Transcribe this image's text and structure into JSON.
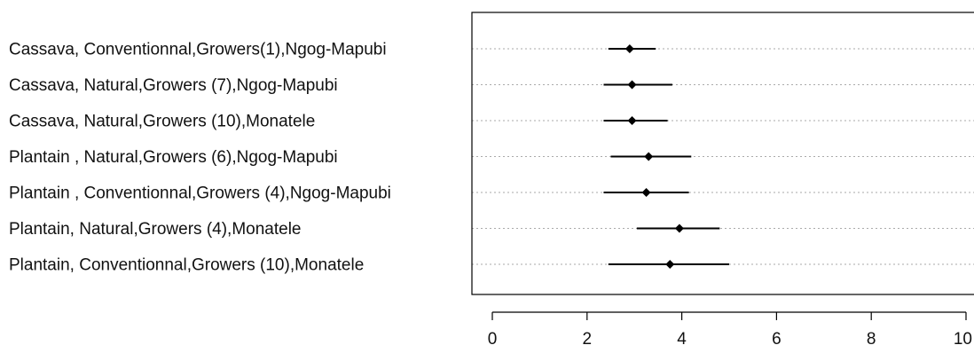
{
  "chart_data": {
    "type": "scatter",
    "title": "",
    "xlabel": "",
    "ylabel": "",
    "xlim": [
      0,
      10
    ],
    "xticks": [
      0,
      2,
      4,
      6,
      8,
      10
    ],
    "xtick_labels": [
      "0",
      "2",
      "4",
      "6",
      "8",
      "10"
    ],
    "grid": "dotted horizontal lines at each row",
    "marker": "diamond with horizontal interval whiskers",
    "categories": [
      "Cassava, Conventionnal,Growers(1),Ngog-Mapubi",
      "Cassava, Natural,Growers (7),Ngog-Mapubi",
      "Cassava, Natural,Growers (10),Monatele",
      "Plantain , Natural,Growers (6),Ngog-Mapubi",
      "Plantain , Conventionnal,Growers (4),Ngog-Mapubi",
      "Plantain, Natural,Growers (4),Monatele",
      "Plantain, Conventionnal,Growers (10),Monatele"
    ],
    "series": [
      {
        "values": [
          2.9,
          2.95,
          2.95,
          3.3,
          3.25,
          3.95,
          3.75
        ],
        "lower": [
          2.45,
          2.35,
          2.35,
          2.5,
          2.35,
          3.05,
          2.45
        ],
        "upper": [
          3.45,
          3.8,
          3.7,
          4.2,
          4.15,
          4.8,
          5.0
        ]
      }
    ],
    "colors": {
      "marker": "#000000",
      "grid": "#aaaaaa",
      "frame": "#000000"
    }
  }
}
